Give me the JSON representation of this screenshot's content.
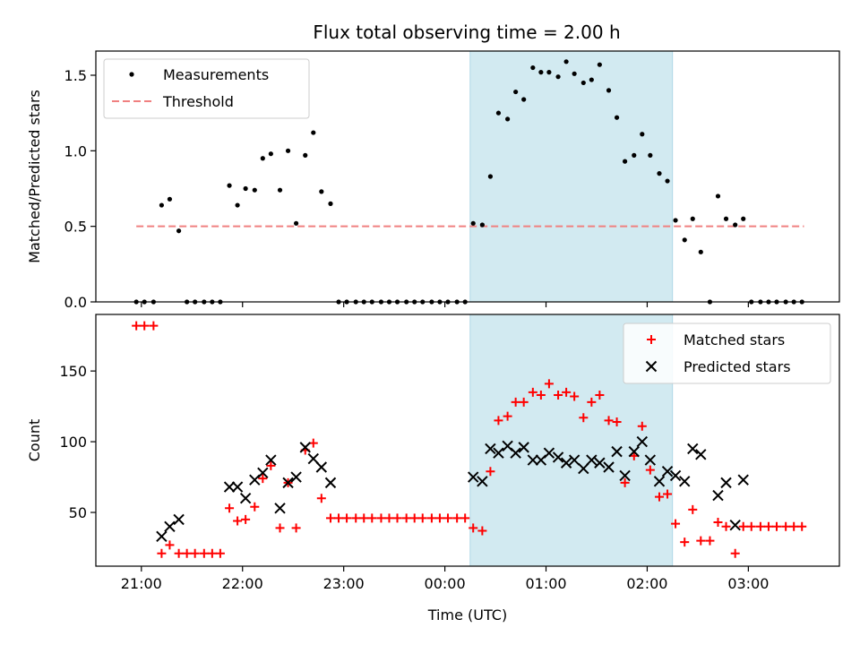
{
  "title": "Flux total observing time = 2.00 h",
  "colors": {
    "shade": "#add8e6",
    "measurement": "#000000",
    "threshold": "#f08080",
    "matched": "#ff0000",
    "predicted": "#000000"
  },
  "chart_data": [
    {
      "type": "scatter",
      "panel": "top",
      "ylabel": "Matched/Predicted stars",
      "ylim": [
        0,
        1.66
      ],
      "yticks": [
        {
          "value": 0,
          "label": "0.0"
        },
        {
          "value": 0.5,
          "label": "0.5"
        },
        {
          "value": 1.0,
          "label": "1.0"
        },
        {
          "value": 1.5,
          "label": "1.5"
        }
      ],
      "xlim_hours": [
        20.55,
        27.9
      ],
      "shaded_span_hours": [
        24.25,
        26.25
      ],
      "threshold": {
        "name": "Threshold",
        "value": 0.5,
        "x_range_hours": [
          20.95,
          27.55
        ]
      },
      "legend": {
        "placement": "upper-left",
        "entries": [
          "Measurements",
          "Threshold"
        ]
      },
      "series": [
        {
          "name": "Measurements",
          "points": [
            [
              20.95,
              0
            ],
            [
              21.03,
              0
            ],
            [
              21.12,
              0
            ],
            [
              21.2,
              0.64
            ],
            [
              21.28,
              0.68
            ],
            [
              21.37,
              0.47
            ],
            [
              21.45,
              0
            ],
            [
              21.53,
              0
            ],
            [
              21.62,
              0
            ],
            [
              21.7,
              0
            ],
            [
              21.78,
              0
            ],
            [
              21.87,
              0.77
            ],
            [
              21.95,
              0.64
            ],
            [
              22.03,
              0.75
            ],
            [
              22.12,
              0.74
            ],
            [
              22.2,
              0.95
            ],
            [
              22.28,
              0.98
            ],
            [
              22.37,
              0.74
            ],
            [
              22.45,
              1.0
            ],
            [
              22.53,
              0.52
            ],
            [
              22.62,
              0.97
            ],
            [
              22.7,
              1.12
            ],
            [
              22.78,
              0.73
            ],
            [
              22.87,
              0.65
            ],
            [
              22.95,
              0
            ],
            [
              23.03,
              0
            ],
            [
              23.12,
              0
            ],
            [
              23.2,
              0
            ],
            [
              23.28,
              0
            ],
            [
              23.37,
              0
            ],
            [
              23.45,
              0
            ],
            [
              23.53,
              0
            ],
            [
              23.62,
              0
            ],
            [
              23.7,
              0
            ],
            [
              23.78,
              0
            ],
            [
              23.87,
              0
            ],
            [
              23.95,
              0
            ],
            [
              24.03,
              0
            ],
            [
              24.12,
              0
            ],
            [
              24.2,
              0
            ],
            [
              24.28,
              0.52
            ],
            [
              24.37,
              0.51
            ],
            [
              24.45,
              0.83
            ],
            [
              24.53,
              1.25
            ],
            [
              24.62,
              1.21
            ],
            [
              24.7,
              1.39
            ],
            [
              24.78,
              1.34
            ],
            [
              24.87,
              1.55
            ],
            [
              24.95,
              1.52
            ],
            [
              25.03,
              1.52
            ],
            [
              25.12,
              1.49
            ],
            [
              25.2,
              1.59
            ],
            [
              25.28,
              1.51
            ],
            [
              25.37,
              1.45
            ],
            [
              25.45,
              1.47
            ],
            [
              25.53,
              1.57
            ],
            [
              25.62,
              1.4
            ],
            [
              25.7,
              1.22
            ],
            [
              25.78,
              0.93
            ],
            [
              25.87,
              0.97
            ],
            [
              25.95,
              1.11
            ],
            [
              26.03,
              0.97
            ],
            [
              26.12,
              0.85
            ],
            [
              26.2,
              0.8
            ],
            [
              26.28,
              0.54
            ],
            [
              26.37,
              0.41
            ],
            [
              26.45,
              0.55
            ],
            [
              26.53,
              0.33
            ],
            [
              26.62,
              0
            ],
            [
              26.7,
              0.7
            ],
            [
              26.78,
              0.55
            ],
            [
              26.87,
              0.51
            ],
            [
              26.95,
              0.55
            ],
            [
              27.03,
              0
            ],
            [
              27.12,
              0
            ],
            [
              27.2,
              0
            ],
            [
              27.28,
              0
            ],
            [
              27.37,
              0
            ],
            [
              27.45,
              0
            ],
            [
              27.53,
              0
            ]
          ]
        }
      ]
    },
    {
      "type": "scatter",
      "panel": "bottom",
      "ylabel": "Count",
      "xlabel": "Time (UTC)",
      "ylim": [
        12,
        190
      ],
      "yticks": [
        {
          "value": 50,
          "label": "50"
        },
        {
          "value": 100,
          "label": "100"
        },
        {
          "value": 150,
          "label": "150"
        }
      ],
      "xlim_hours": [
        20.55,
        27.9
      ],
      "xticks": [
        {
          "value": 21,
          "label": "21:00"
        },
        {
          "value": 22,
          "label": "22:00"
        },
        {
          "value": 23,
          "label": "23:00"
        },
        {
          "value": 24,
          "label": "00:00"
        },
        {
          "value": 25,
          "label": "01:00"
        },
        {
          "value": 26,
          "label": "02:00"
        },
        {
          "value": 27,
          "label": "03:00"
        }
      ],
      "shaded_span_hours": [
        24.25,
        26.25
      ],
      "legend": {
        "placement": "upper-right",
        "entries": [
          "Matched stars",
          "Predicted stars"
        ]
      },
      "series": [
        {
          "name": "Matched stars",
          "marker": "plus",
          "points": [
            [
              20.95,
              182
            ],
            [
              21.03,
              182
            ],
            [
              21.12,
              182
            ],
            [
              21.2,
              21
            ],
            [
              21.28,
              27
            ],
            [
              21.37,
              21
            ],
            [
              21.45,
              21
            ],
            [
              21.53,
              21
            ],
            [
              21.62,
              21
            ],
            [
              21.7,
              21
            ],
            [
              21.78,
              21
            ],
            [
              21.87,
              53
            ],
            [
              21.95,
              44
            ],
            [
              22.03,
              45
            ],
            [
              22.12,
              54
            ],
            [
              22.2,
              74
            ],
            [
              22.28,
              83
            ],
            [
              22.37,
              39
            ],
            [
              22.45,
              71
            ],
            [
              22.53,
              39
            ],
            [
              22.62,
              94
            ],
            [
              22.7,
              99
            ],
            [
              22.78,
              60
            ],
            [
              22.87,
              46
            ],
            [
              22.95,
              46
            ],
            [
              23.03,
              46
            ],
            [
              23.12,
              46
            ],
            [
              23.2,
              46
            ],
            [
              23.28,
              46
            ],
            [
              23.37,
              46
            ],
            [
              23.45,
              46
            ],
            [
              23.53,
              46
            ],
            [
              23.62,
              46
            ],
            [
              23.7,
              46
            ],
            [
              23.78,
              46
            ],
            [
              23.87,
              46
            ],
            [
              23.95,
              46
            ],
            [
              24.03,
              46
            ],
            [
              24.12,
              46
            ],
            [
              24.2,
              46
            ],
            [
              24.28,
              39
            ],
            [
              24.37,
              37
            ],
            [
              24.45,
              79
            ],
            [
              24.53,
              115
            ],
            [
              24.62,
              118
            ],
            [
              24.7,
              128
            ],
            [
              24.78,
              128
            ],
            [
              24.87,
              135
            ],
            [
              24.95,
              133
            ],
            [
              25.03,
              141
            ],
            [
              25.12,
              133
            ],
            [
              25.2,
              135
            ],
            [
              25.28,
              132
            ],
            [
              25.37,
              117
            ],
            [
              25.45,
              128
            ],
            [
              25.53,
              133
            ],
            [
              25.62,
              115
            ],
            [
              25.7,
              114
            ],
            [
              25.78,
              71
            ],
            [
              25.87,
              90
            ],
            [
              25.95,
              111
            ],
            [
              26.03,
              80
            ],
            [
              26.12,
              61
            ],
            [
              26.2,
              63
            ],
            [
              26.28,
              42
            ],
            [
              26.37,
              29
            ],
            [
              26.45,
              52
            ],
            [
              26.53,
              30
            ],
            [
              26.62,
              30
            ],
            [
              26.7,
              43
            ],
            [
              26.78,
              40
            ],
            [
              26.87,
              21
            ],
            [
              26.95,
              40
            ],
            [
              27.03,
              40
            ],
            [
              27.12,
              40
            ],
            [
              27.2,
              40
            ],
            [
              27.28,
              40
            ],
            [
              27.37,
              40
            ],
            [
              27.45,
              40
            ],
            [
              27.53,
              40
            ]
          ]
        },
        {
          "name": "Predicted stars",
          "marker": "x",
          "points": [
            [
              21.2,
              33
            ],
            [
              21.28,
              40
            ],
            [
              21.37,
              45
            ],
            [
              21.87,
              68
            ],
            [
              21.95,
              68
            ],
            [
              22.03,
              60
            ],
            [
              22.12,
              73
            ],
            [
              22.2,
              78
            ],
            [
              22.28,
              87
            ],
            [
              22.37,
              53
            ],
            [
              22.45,
              71
            ],
            [
              22.53,
              75
            ],
            [
              22.62,
              96
            ],
            [
              22.7,
              88
            ],
            [
              22.78,
              82
            ],
            [
              22.87,
              71
            ],
            [
              24.28,
              75
            ],
            [
              24.37,
              72
            ],
            [
              24.45,
              95
            ],
            [
              24.53,
              92
            ],
            [
              24.62,
              97
            ],
            [
              24.7,
              92
            ],
            [
              24.78,
              96
            ],
            [
              24.87,
              87
            ],
            [
              24.95,
              87
            ],
            [
              25.03,
              92
            ],
            [
              25.12,
              89
            ],
            [
              25.2,
              85
            ],
            [
              25.28,
              87
            ],
            [
              25.37,
              81
            ],
            [
              25.45,
              87
            ],
            [
              25.53,
              85
            ],
            [
              25.62,
              82
            ],
            [
              25.7,
              93
            ],
            [
              25.78,
              76
            ],
            [
              25.87,
              93
            ],
            [
              25.95,
              100
            ],
            [
              26.03,
              87
            ],
            [
              26.12,
              72
            ],
            [
              26.2,
              79
            ],
            [
              26.28,
              76
            ],
            [
              26.37,
              72
            ],
            [
              26.45,
              95
            ],
            [
              26.53,
              91
            ],
            [
              26.7,
              62
            ],
            [
              26.78,
              71
            ],
            [
              26.87,
              41
            ],
            [
              26.95,
              73
            ]
          ]
        }
      ]
    }
  ]
}
